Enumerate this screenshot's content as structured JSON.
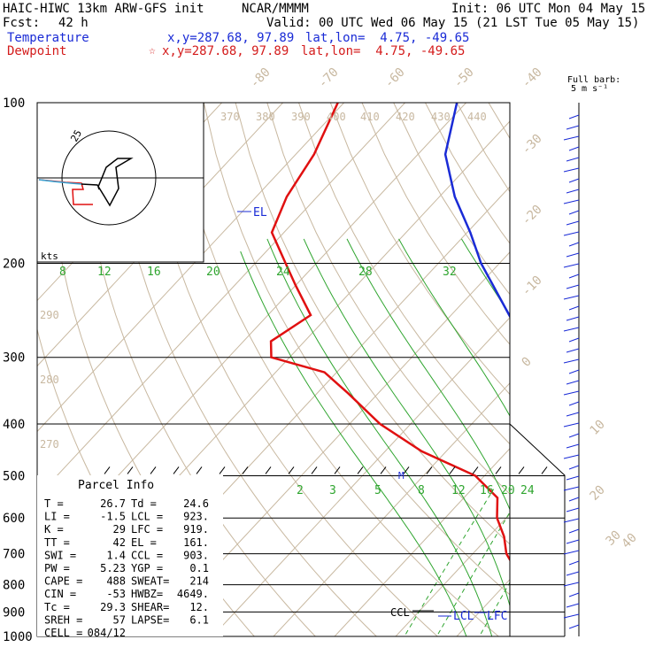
{
  "header": {
    "model": "HAIC-HIWC 13km ARW-GFS init",
    "org": "NCAR/MMMM",
    "init": "Init: 06 UTC Mon 04 May 15",
    "fcst_label": "Fcst:",
    "fcst_value": "42 h",
    "valid": "Valid: 00 UTC Wed 06 May 15 (21 LST Tue 05 May 15)",
    "temperature_label": "Temperature",
    "temperature_xy": "x,y=287.68, 97.89",
    "temperature_latlon": "lat,lon=  4.75, -49.65",
    "dewpoint_label": "Dewpoint",
    "dewpoint_marker": "☆",
    "dewpoint_xy": "x,y=287.68, 97.89",
    "dewpoint_latlon": "lat,lon=  4.75, -49.65"
  },
  "barb_legend": {
    "line1": "Full barb:",
    "line2": "5 m s⁻¹"
  },
  "colors": {
    "temperature": "#1a2bd6",
    "dewpoint": "#e01010",
    "isotherm": "#c8b8a0",
    "dry_adiabat": "#c8b8a0",
    "moist_adiabat": "#2fa52f",
    "mixing_ratio": "#2fa52f",
    "isobar": "#000000"
  },
  "chart_data": {
    "type": "line",
    "yscale": "log-pressure",
    "ylabel": "",
    "xlabel": "",
    "pressure_levels": [
      100,
      200,
      300,
      400,
      500,
      600,
      700,
      800,
      900,
      1000
    ],
    "pressure_tick_labels": [
      "100",
      "200",
      "300",
      "400",
      "500",
      "600",
      "700",
      "800",
      "900",
      "1000"
    ],
    "isotherm_labels_top": [
      "-80",
      "-70",
      "-60",
      "-50",
      "-40"
    ],
    "isotherm_labels_right": [
      "-30",
      "-20",
      "-10",
      "0",
      "10",
      "20",
      "30",
      "40"
    ],
    "theta_labels": [
      "370",
      "380",
      "390",
      "400",
      "410",
      "420",
      "430",
      "440"
    ],
    "theta_labels_left": [
      "290",
      "280",
      "270"
    ],
    "moist_adiabat_labels": [
      "8",
      "12",
      "16",
      "20",
      "24",
      "28",
      "32"
    ],
    "mixing_ratio_labels": [
      "2",
      "3",
      "5",
      "8",
      "12",
      "16",
      "20",
      "24"
    ],
    "series": [
      {
        "name": "Temperature",
        "points": [
          [
            1000,
            24.5
          ],
          [
            975,
            23.6
          ],
          [
            950,
            20.0
          ],
          [
            925,
            18.6
          ],
          [
            900,
            17.5
          ],
          [
            850,
            15.6
          ],
          [
            800,
            14.3
          ],
          [
            750,
            12.2
          ],
          [
            700,
            9.3
          ],
          [
            650,
            5.8
          ],
          [
            600,
            3.3
          ],
          [
            550,
            0.7
          ],
          [
            500,
            -3.5
          ],
          [
            450,
            -8.3
          ],
          [
            400,
            -14.2
          ],
          [
            350,
            -21.4
          ],
          [
            300,
            -30.2
          ],
          [
            250,
            -40.5
          ],
          [
            200,
            -53.0
          ],
          [
            175,
            -59.5
          ],
          [
            150,
            -67.5
          ],
          [
            125,
            -75.5
          ],
          [
            100,
            -81.5
          ]
        ]
      },
      {
        "name": "Dewpoint",
        "points": [
          [
            1000,
            22.7
          ],
          [
            975,
            13.6
          ],
          [
            950,
            13.0
          ],
          [
            925,
            12.6
          ],
          [
            900,
            11.6
          ],
          [
            850,
            6.5
          ],
          [
            800,
            2.5
          ],
          [
            750,
            -0.5
          ],
          [
            700,
            -4.5
          ],
          [
            650,
            -7.5
          ],
          [
            600,
            -11.5
          ],
          [
            550,
            -14.5
          ],
          [
            500,
            -21.5
          ],
          [
            450,
            -34.0
          ],
          [
            400,
            -45.0
          ],
          [
            350,
            -55.0
          ],
          [
            320,
            -62.0
          ],
          [
            300,
            -73.0
          ],
          [
            280,
            -75.5
          ],
          [
            250,
            -73.0
          ],
          [
            220,
            -80.0
          ],
          [
            200,
            -85.0
          ],
          [
            175,
            -92.0
          ],
          [
            150,
            -95.0
          ],
          [
            125,
            -97.0
          ],
          [
            100,
            -101.0
          ]
        ]
      }
    ],
    "annotations": [
      "EL",
      "LCL",
      "LFC",
      "CCL",
      "M"
    ]
  },
  "parcel": {
    "title": "Parcel Info",
    "rows": [
      [
        "T    =",
        "26.7",
        "Td =",
        "24.6"
      ],
      [
        "LI   =",
        "-1.5",
        "LCL =",
        "923."
      ],
      [
        "K    =",
        "29",
        "LFC =",
        "919."
      ],
      [
        "TT   =",
        "42",
        "EL  =",
        "161."
      ],
      [
        "SWI  =",
        "1.4",
        "CCL =",
        "903."
      ],
      [
        "PW   =",
        "5.23",
        "YGP =",
        "0.1"
      ],
      [
        "CAPE =",
        "488",
        "SWEAT=",
        "214"
      ],
      [
        "CIN  =",
        "-53",
        "HWBZ=",
        "4649."
      ],
      [
        "Tc   =",
        "29.3",
        "SHEAR=",
        "12."
      ],
      [
        "SREH =",
        "57",
        "LAPSE=",
        "6.1"
      ],
      [
        "CELL =",
        "084/12",
        "",
        ""
      ]
    ]
  },
  "hodograph": {
    "units": "kts",
    "ring_label": "25"
  }
}
